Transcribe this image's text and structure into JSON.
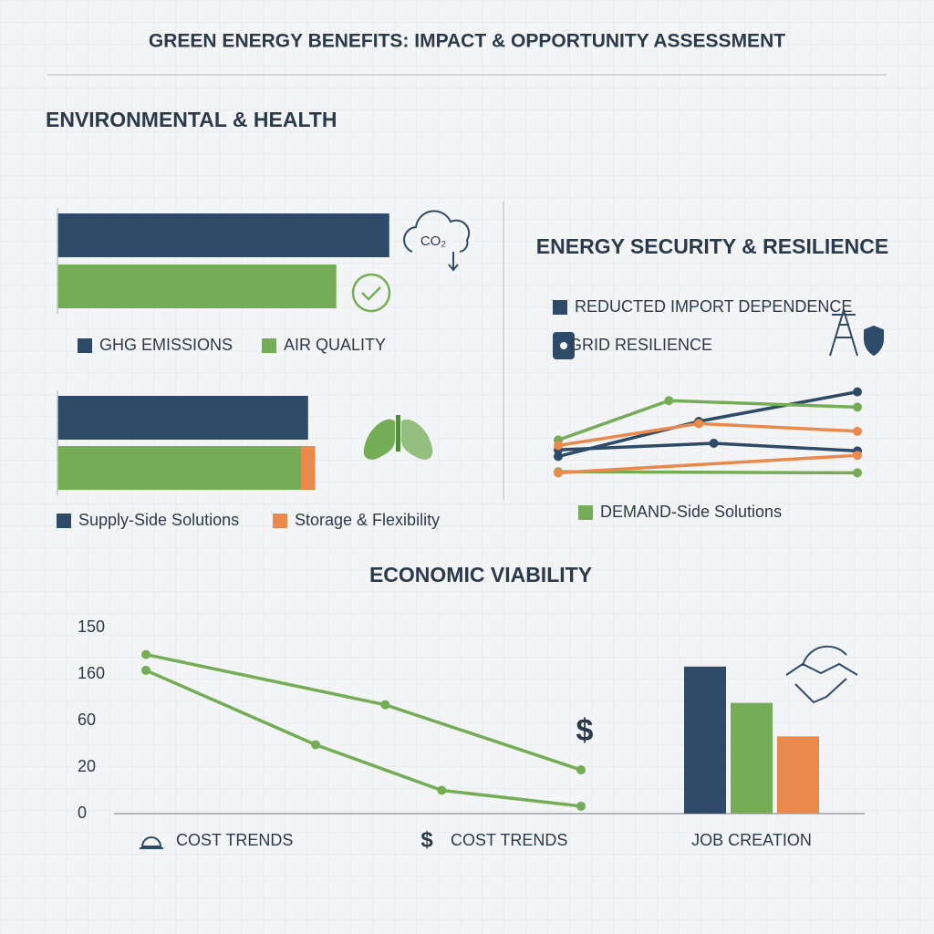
{
  "title": "GREEN ENERGY BENEFITS: IMPACT & OPPORTUNITY ASSESSMENT",
  "chart_data": [
    {
      "type": "bar",
      "orientation": "horizontal",
      "stacked": true,
      "title": "ENVIRONMENTAL & HEALTH",
      "icon_label": "CO₂",
      "categories": [
        null,
        null
      ],
      "xlim": [
        0,
        100
      ],
      "series": [
        {
          "name": "GHG EMISSIONS",
          "color": "#2d4a69",
          "values": [
            94,
            null
          ]
        },
        {
          "name": "AIR QUALITY",
          "color": "#75ad57",
          "values": [
            null,
            79
          ]
        }
      ]
    },
    {
      "type": "bar",
      "orientation": "horizontal",
      "stacked": true,
      "categories": [
        null,
        null
      ],
      "xlim": [
        0,
        100
      ],
      "series": [
        {
          "name": "Supply-Side Solutions",
          "color": "#2d4a69",
          "values": [
            71,
            null
          ]
        },
        {
          "color": "#75ad57",
          "values": [
            null,
            69
          ]
        },
        {
          "name": "Storage & Flexibility",
          "color": "#e98a4c",
          "values": [
            null,
            4
          ]
        }
      ]
    },
    {
      "type": "line",
      "title": "ENERGY SECURITY & RESILIENCE",
      "xlim": [
        0,
        100
      ],
      "ylim": [
        0,
        100
      ],
      "series": [
        {
          "name": "REDUCTED IMPORT DEPENDENCE",
          "color": "#2d4a69",
          "x": [
            0,
            47,
            100
          ],
          "values": [
            33,
            65,
            92
          ]
        },
        {
          "name": "GRID RESILIENCE",
          "color": "#2d4a69",
          "x": [
            0,
            52,
            100
          ],
          "values": [
            39,
            45,
            38
          ]
        },
        {
          "name": "DEMAND-Side Solutions",
          "color": "#75ad57",
          "x": [
            0,
            37,
            100
          ],
          "values": [
            48,
            84,
            78
          ]
        },
        {
          "color": "#75ad57",
          "x": [
            0,
            100
          ],
          "values": [
            19,
            18
          ]
        },
        {
          "color": "#e98a4c",
          "x": [
            0,
            47,
            100
          ],
          "values": [
            43,
            63,
            56
          ]
        },
        {
          "color": "#e98a4c",
          "x": [
            0,
            100
          ],
          "values": [
            18,
            34
          ]
        }
      ]
    },
    {
      "type": "line",
      "title": "ECONOMIC VIABILITY",
      "xlim": [
        0,
        100
      ],
      "ylim": [
        0,
        200
      ],
      "yticks": [
        {
          "value": 200,
          "label": "150"
        },
        {
          "value": 150,
          "label": "160"
        },
        {
          "value": 100,
          "label": "60"
        },
        {
          "value": 50,
          "label": "20"
        },
        0
      ],
      "x_labels": [
        "COST TRENDS",
        "COST TRENDS"
      ],
      "annotations": [
        "$",
        "$"
      ],
      "series": [
        {
          "color": "#75ad57",
          "x": [
            0,
            55,
            100
          ],
          "values": [
            171,
            117,
            47
          ]
        },
        {
          "color": "#75ad57",
          "x": [
            0,
            39,
            68,
            100
          ],
          "values": [
            154,
            74,
            25,
            8
          ]
        }
      ]
    },
    {
      "type": "bar",
      "orientation": "vertical",
      "xlabel": "JOB CREATION",
      "categories": [
        null
      ],
      "ylim": [
        0,
        200
      ],
      "series": [
        {
          "color": "#2d4a69",
          "values": [
            158
          ]
        },
        {
          "color": "#75ad57",
          "values": [
            119
          ]
        },
        {
          "color": "#e98a4c",
          "values": [
            83
          ]
        }
      ]
    }
  ]
}
